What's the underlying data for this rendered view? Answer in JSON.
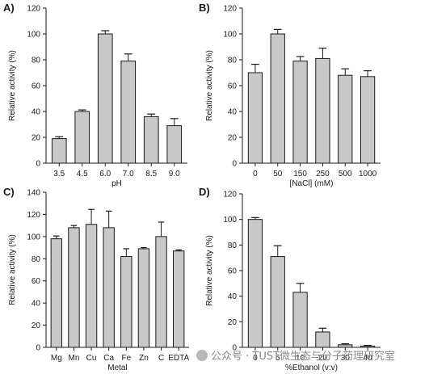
{
  "chart_data": [
    {
      "type": "bar",
      "panel_label": "A)",
      "xlabel": "pH",
      "ylabel": "Relative activity (%)",
      "ylim": [
        0,
        120
      ],
      "yticks": [
        0,
        20,
        40,
        60,
        80,
        100,
        120
      ],
      "categories": [
        "3.5",
        "4.5",
        "6.0",
        "7.0",
        "8.5",
        "9.0"
      ],
      "values": [
        19,
        40,
        100,
        79,
        36,
        29
      ],
      "errors": [
        1.5,
        1.2,
        2.5,
        5.5,
        2.0,
        5.5
      ]
    },
    {
      "type": "bar",
      "panel_label": "B)",
      "xlabel": "[NaCl] (mM)",
      "ylabel": "Relative activity (%)",
      "ylim": [
        0,
        120
      ],
      "yticks": [
        0,
        20,
        40,
        60,
        80,
        100,
        120
      ],
      "categories": [
        "0",
        "50",
        "150",
        "250",
        "500",
        "1000"
      ],
      "values": [
        70,
        100,
        79,
        81,
        68,
        67
      ],
      "errors": [
        6.5,
        3.5,
        3.5,
        8.0,
        5.0,
        4.5
      ]
    },
    {
      "type": "bar",
      "panel_label": "C)",
      "xlabel": "Metal",
      "ylabel": "Relative activity (%)",
      "ylim": [
        0,
        140
      ],
      "yticks": [
        0,
        20,
        40,
        60,
        80,
        100,
        120,
        140
      ],
      "categories": [
        "Mg",
        "Mn",
        "Cu",
        "Ca",
        "Fe",
        "Zn",
        "C",
        "EDTA"
      ],
      "values": [
        98,
        108,
        111,
        108,
        82,
        89,
        100,
        87
      ],
      "errors": [
        2.5,
        2.0,
        13.5,
        15.0,
        7.0,
        1.0,
        13.0,
        1.0
      ]
    },
    {
      "type": "bar",
      "panel_label": "D)",
      "xlabel": "%Ethanol (v:v)",
      "ylabel": "Relative activity (%)",
      "ylim": [
        0,
        120
      ],
      "yticks": [
        0,
        20,
        40,
        60,
        80,
        100,
        120
      ],
      "categories": [
        "0",
        "5",
        "10",
        "20",
        "30",
        "40"
      ],
      "values": [
        100,
        71,
        43,
        12,
        2,
        1
      ],
      "errors": [
        1.5,
        8.5,
        7.0,
        3.0,
        0.8,
        0.5
      ]
    }
  ],
  "colors": {
    "bar_fill": "#c8c8c8",
    "bar_stroke": "#1a1a1a",
    "axis": "#1a1a1a",
    "text": "#1a1a1a"
  },
  "watermark": {
    "text": "公众号 · TUST微生态与分子药理研究室",
    "icon": "wechat-icon"
  }
}
